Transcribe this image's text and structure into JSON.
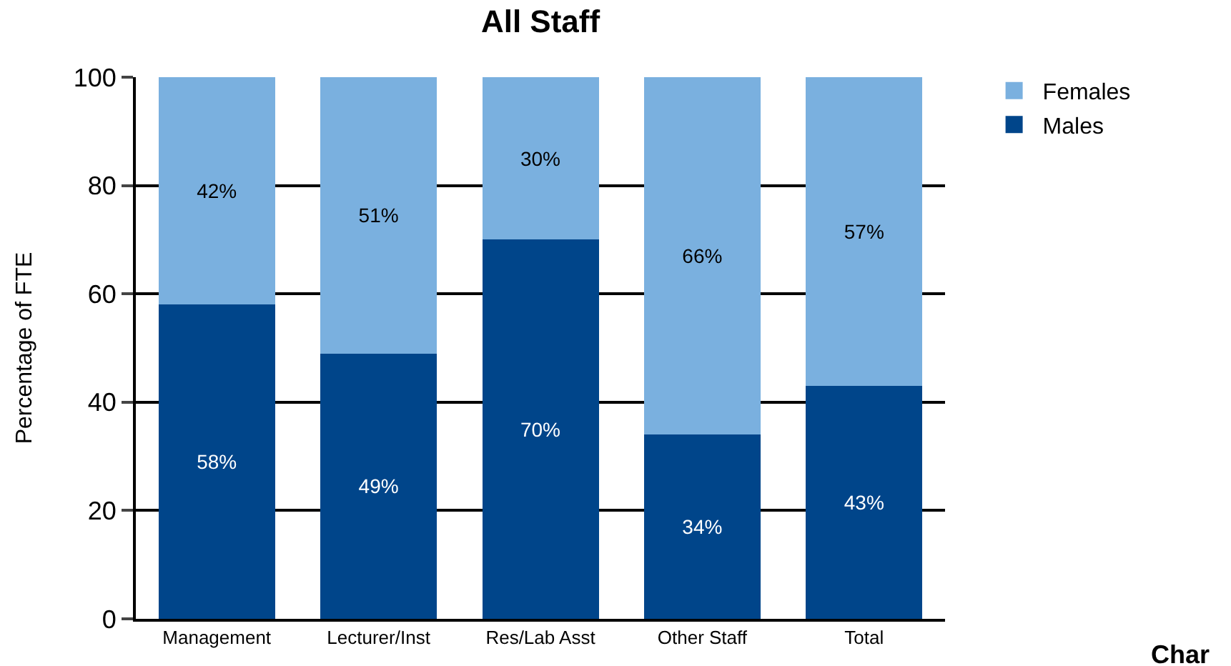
{
  "chart_data": {
    "type": "bar",
    "title": "All Staff",
    "ylabel": "Percentage of FTE",
    "categories": [
      "Management",
      "Lecturer/Inst",
      "Res/Lab Asst",
      "Other Staff",
      "Total"
    ],
    "stacked": true,
    "series": [
      {
        "name": "Males",
        "color": "#00458a",
        "values": [
          58,
          49,
          70,
          34,
          43
        ],
        "value_labels": [
          "58%",
          "49%",
          "70%",
          "34%",
          "43%"
        ]
      },
      {
        "name": "Females",
        "color": "#7ab0df",
        "values": [
          42,
          51,
          30,
          66,
          57
        ],
        "value_labels": [
          "42%",
          "51%",
          "30%",
          "66%",
          "57%"
        ]
      }
    ],
    "ylim": [
      0,
      100
    ],
    "yticks": [
      0,
      20,
      40,
      60,
      80,
      100
    ],
    "grid": "y",
    "legend": "top right",
    "annotations": [
      "Char"
    ]
  }
}
